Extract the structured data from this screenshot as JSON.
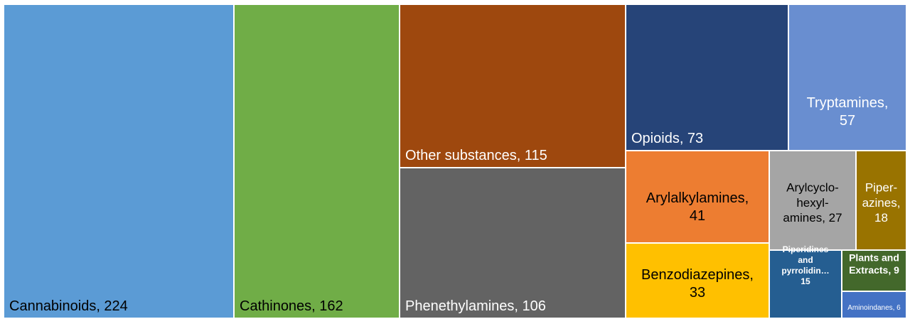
{
  "chart_data": {
    "type": "treemap",
    "items": [
      {
        "label": "Cannabinoids, 224",
        "lines": [
          "Cannabinoids, 224"
        ],
        "category": "Cannabinoids",
        "value": 224,
        "color": "#5b9bd5",
        "text_color": "#000000"
      },
      {
        "label": "Cathinones, 162",
        "lines": [
          "Cathinones, 162"
        ],
        "category": "Cathinones",
        "value": 162,
        "color": "#70ad47",
        "text_color": "#000000"
      },
      {
        "label": "Other substances, 115",
        "lines": [
          "Other substances, 115"
        ],
        "category": "Other substances",
        "value": 115,
        "color": "#9e480e",
        "text_color": "#ffffff"
      },
      {
        "label": "Phenethylamines, 106",
        "lines": [
          "Phenethylamines, 106"
        ],
        "category": "Phenethylamines",
        "value": 106,
        "color": "#636363",
        "text_color": "#ffffff"
      },
      {
        "label": "Opioids, 73",
        "lines": [
          "Opioids, 73"
        ],
        "category": "Opioids",
        "value": 73,
        "color": "#264478",
        "text_color": "#ffffff"
      },
      {
        "label": "Tryptamines, 57",
        "lines": [
          "Tryptamines,",
          "57"
        ],
        "category": "Tryptamines",
        "value": 57,
        "color": "#698ed0",
        "text_color": "#ffffff"
      },
      {
        "label": "Arylalkylamines, 41",
        "lines": [
          "Arylalkylamines,",
          "41"
        ],
        "category": "Arylalkylamines",
        "value": 41,
        "color": "#ed7d31",
        "text_color": "#000000"
      },
      {
        "label": "Arylcyclo-hexyl-amines, 27",
        "lines": [
          "Arylcyclo-",
          "hexyl-",
          "amines, 27"
        ],
        "category": "Arylcyclohexylamines",
        "value": 27,
        "color": "#a5a5a5",
        "text_color": "#000000"
      },
      {
        "label": "Piper-azines, 18",
        "lines": [
          "Piper-",
          "azines,",
          "18"
        ],
        "category": "Piperazines",
        "value": 18,
        "color": "#997300",
        "text_color": "#ffffff"
      },
      {
        "label": "Benzodiazepines, 33",
        "lines": [
          "Benzodiazepines,",
          "33"
        ],
        "category": "Benzodiazepines",
        "value": 33,
        "color": "#ffc000",
        "text_color": "#000000"
      },
      {
        "label": "Piperidines and pyrrolidin… 15",
        "lines": [
          "Piperidines",
          "and",
          "pyrrolidin…",
          "15"
        ],
        "category": "Piperidines and pyrrolidines",
        "value": 15,
        "color": "#255e91",
        "text_color": "#ffffff"
      },
      {
        "label": "Plants and Extracts, 9",
        "lines": [
          "Plants and",
          "Extracts, 9"
        ],
        "category": "Plants and Extracts",
        "value": 9,
        "color": "#43682b",
        "text_color": "#ffffff"
      },
      {
        "label": "Aminoindanes, 6",
        "lines": [
          "Aminoindanes, 6"
        ],
        "category": "Aminoindanes",
        "value": 6,
        "color": "#4472c4",
        "text_color": "#ffffff"
      }
    ]
  }
}
